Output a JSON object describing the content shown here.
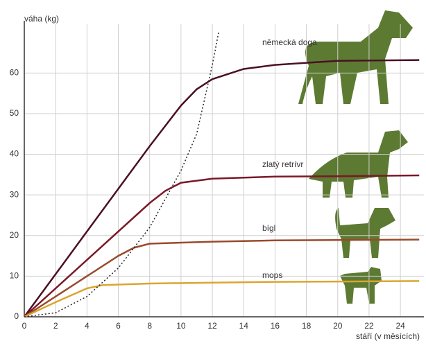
{
  "chart_data": {
    "type": "line",
    "y_label": "váha (kg)",
    "x_label": "stáří (v měsících)",
    "xlim": [
      0,
      25.5
    ],
    "ylim": [
      0,
      72
    ],
    "xticks": [
      0,
      2,
      4,
      6,
      8,
      10,
      12,
      14,
      16,
      18,
      20,
      22,
      24
    ],
    "yticks": [
      0,
      10,
      20,
      30,
      40,
      50,
      60
    ],
    "grid": true,
    "series": [
      {
        "name": "německá doga",
        "color": "#4a1024",
        "x": [
          0,
          4,
          8,
          10,
          11,
          12,
          14,
          16,
          18,
          20,
          25.2
        ],
        "values": [
          0,
          21,
          42,
          52,
          56,
          58.5,
          61,
          62,
          62.5,
          63,
          63.2
        ]
      },
      {
        "name": "zlatý retrívr",
        "color": "#7a1828",
        "x": [
          0,
          4,
          8,
          9,
          10,
          12,
          16,
          20,
          25.2
        ],
        "values": [
          0,
          14,
          28,
          31,
          33,
          34,
          34.5,
          34.6,
          34.8
        ]
      },
      {
        "name": "bígl",
        "color": "#9a4a2c",
        "x": [
          0,
          3,
          6,
          7,
          8,
          12,
          16,
          25.2
        ],
        "values": [
          0,
          7.5,
          15,
          17,
          18,
          18.5,
          18.8,
          19
        ]
      },
      {
        "name": "mops",
        "color": "#dca530",
        "x": [
          0,
          2,
          4,
          5,
          8,
          12,
          16,
          25.2
        ],
        "values": [
          0,
          3.6,
          7,
          7.8,
          8.2,
          8.4,
          8.6,
          8.8
        ]
      },
      {
        "name": null,
        "color": "#222222",
        "dashed": true,
        "x": [
          0,
          2,
          4,
          6,
          8,
          10,
          11,
          12,
          12.4
        ],
        "values": [
          0,
          1,
          5,
          12,
          22,
          36,
          45,
          62,
          70
        ]
      }
    ]
  }
}
